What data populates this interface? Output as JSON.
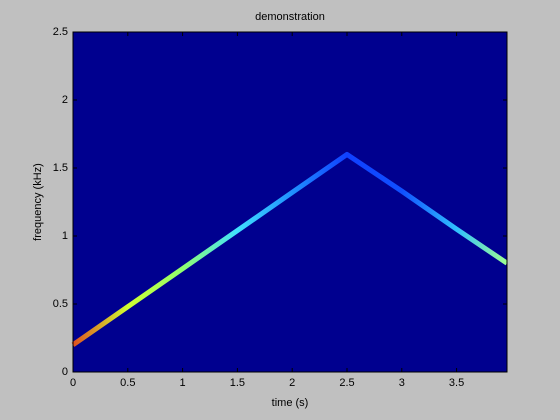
{
  "chart_data": {
    "type": "line",
    "title": "demonstration",
    "x_label": "time (s)",
    "y_label": "frequency (kHz)",
    "background_color": "#00008f",
    "series": [
      {
        "x": [
          0,
          0.5,
          1,
          1.5,
          2,
          2.5,
          3,
          3.5,
          3.96
        ],
        "values": [
          0.2,
          0.48,
          0.76,
          1.04,
          1.32,
          1.6,
          1.33,
          1.05,
          0.8
        ],
        "colors": [
          "#e05020",
          "#d0ff30",
          "#90ff70",
          "#40e0ff",
          "#2090ff",
          "#1040ff",
          "#1050ff",
          "#30c0ff",
          "#a0ff90"
        ]
      }
    ],
    "xlim": [
      0,
      3.96
    ],
    "ylim": [
      0,
      2.5
    ],
    "xticks": [
      0,
      0.5,
      1,
      1.5,
      2,
      2.5,
      3,
      3.5
    ],
    "yticks": [
      0,
      0.5,
      1,
      1.5,
      2,
      2.5
    ]
  }
}
